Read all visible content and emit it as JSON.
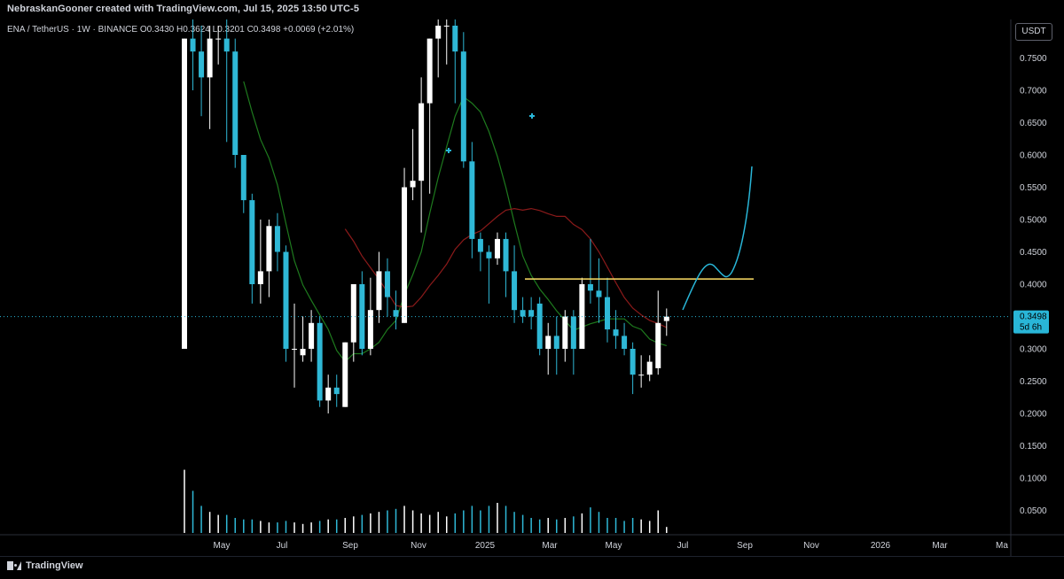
{
  "header": {
    "attribution": "NebraskanGooner created with TradingView.com, Jul 15, 2025 13:50 UTC-5",
    "symbol": "ENA / TetherUS · 1W · BINANCE",
    "o_label": "O",
    "o_value": "0.3430",
    "h_label": "H",
    "h_value": "0.3624",
    "l_label": "L",
    "l_value": "0.3201",
    "c_label": "C",
    "c_value": "0.3498",
    "change": "+0.0069 (+2.01%)",
    "currency": "USDT"
  },
  "footer": {
    "logo_text": "TradingView"
  },
  "colors": {
    "up": "#ffffff",
    "down": "#2fb8d6",
    "ma_fast": "#1e7a1e",
    "ma_slow": "#8b1a1a",
    "projection": "#29b6d8",
    "resistance": "#ffe066",
    "price_tag": "#29b6d8"
  },
  "chart_data": {
    "type": "candlestick",
    "title": "",
    "price_axis": {
      "ticks": [
        "0.0500",
        "0.1000",
        "0.1500",
        "0.2000",
        "0.2500",
        "0.3000",
        "0.3500",
        "0.4000",
        "0.4500",
        "0.5000",
        "0.5500",
        "0.6000",
        "0.6500",
        "0.7000",
        "0.7500"
      ],
      "range": [
        0.0,
        0.78
      ]
    },
    "time_axis": {
      "ticks": [
        "May",
        "Jul",
        "Sep",
        "Nov",
        "2025",
        "Mar",
        "May",
        "Jul",
        "Sep",
        "Nov",
        "2026",
        "Mar",
        "Ma"
      ]
    },
    "last_price": {
      "value": "0.3498",
      "countdown": "5d 6h"
    },
    "resistance_level": 0.408,
    "candles": [
      {
        "o": 0.3,
        "h": 0.78,
        "l": 0.3,
        "c": 0.78
      },
      {
        "o": 0.78,
        "h": 0.82,
        "l": 0.7,
        "c": 0.76
      },
      {
        "o": 0.76,
        "h": 0.8,
        "l": 0.66,
        "c": 0.72
      },
      {
        "o": 0.72,
        "h": 0.8,
        "l": 0.64,
        "c": 0.78
      },
      {
        "o": 0.78,
        "h": 0.8,
        "l": 0.74,
        "c": 0.78
      },
      {
        "o": 0.78,
        "h": 0.81,
        "l": 0.62,
        "c": 0.76
      },
      {
        "o": 0.76,
        "h": 0.78,
        "l": 0.58,
        "c": 0.6
      },
      {
        "o": 0.6,
        "h": 0.6,
        "l": 0.51,
        "c": 0.53
      },
      {
        "o": 0.53,
        "h": 0.54,
        "l": 0.37,
        "c": 0.4
      },
      {
        "o": 0.4,
        "h": 0.5,
        "l": 0.37,
        "c": 0.42
      },
      {
        "o": 0.42,
        "h": 0.5,
        "l": 0.38,
        "c": 0.49
      },
      {
        "o": 0.49,
        "h": 0.51,
        "l": 0.42,
        "c": 0.45
      },
      {
        "o": 0.45,
        "h": 0.46,
        "l": 0.28,
        "c": 0.3
      },
      {
        "o": 0.3,
        "h": 0.37,
        "l": 0.24,
        "c": 0.3
      },
      {
        "o": 0.29,
        "h": 0.35,
        "l": 0.28,
        "c": 0.3
      },
      {
        "o": 0.3,
        "h": 0.36,
        "l": 0.28,
        "c": 0.34
      },
      {
        "o": 0.34,
        "h": 0.35,
        "l": 0.21,
        "c": 0.22
      },
      {
        "o": 0.22,
        "h": 0.26,
        "l": 0.2,
        "c": 0.24
      },
      {
        "o": 0.24,
        "h": 0.26,
        "l": 0.21,
        "c": 0.23
      },
      {
        "o": 0.21,
        "h": 0.31,
        "l": 0.21,
        "c": 0.31
      },
      {
        "o": 0.31,
        "h": 0.4,
        "l": 0.28,
        "c": 0.4
      },
      {
        "o": 0.4,
        "h": 0.42,
        "l": 0.29,
        "c": 0.3
      },
      {
        "o": 0.3,
        "h": 0.41,
        "l": 0.29,
        "c": 0.36
      },
      {
        "o": 0.36,
        "h": 0.45,
        "l": 0.34,
        "c": 0.42
      },
      {
        "o": 0.42,
        "h": 0.44,
        "l": 0.35,
        "c": 0.38
      },
      {
        "o": 0.36,
        "h": 0.39,
        "l": 0.33,
        "c": 0.35
      },
      {
        "o": 0.34,
        "h": 0.58,
        "l": 0.34,
        "c": 0.55
      },
      {
        "o": 0.55,
        "h": 0.64,
        "l": 0.53,
        "c": 0.56
      },
      {
        "o": 0.56,
        "h": 0.72,
        "l": 0.48,
        "c": 0.68
      },
      {
        "o": 0.68,
        "h": 0.78,
        "l": 0.54,
        "c": 0.78
      },
      {
        "o": 0.78,
        "h": 0.82,
        "l": 0.72,
        "c": 0.8
      },
      {
        "o": 0.8,
        "h": 0.82,
        "l": 0.74,
        "c": 0.8
      },
      {
        "o": 0.8,
        "h": 0.82,
        "l": 0.68,
        "c": 0.76
      },
      {
        "o": 0.76,
        "h": 0.79,
        "l": 0.58,
        "c": 0.59
      },
      {
        "o": 0.59,
        "h": 0.62,
        "l": 0.44,
        "c": 0.47
      },
      {
        "o": 0.47,
        "h": 0.48,
        "l": 0.42,
        "c": 0.45
      },
      {
        "o": 0.45,
        "h": 0.46,
        "l": 0.37,
        "c": 0.44
      },
      {
        "o": 0.44,
        "h": 0.48,
        "l": 0.43,
        "c": 0.47
      },
      {
        "o": 0.47,
        "h": 0.48,
        "l": 0.38,
        "c": 0.42
      },
      {
        "o": 0.42,
        "h": 0.46,
        "l": 0.34,
        "c": 0.36
      },
      {
        "o": 0.36,
        "h": 0.38,
        "l": 0.34,
        "c": 0.35
      },
      {
        "o": 0.36,
        "h": 0.38,
        "l": 0.33,
        "c": 0.35
      },
      {
        "o": 0.37,
        "h": 0.38,
        "l": 0.29,
        "c": 0.3
      },
      {
        "o": 0.3,
        "h": 0.34,
        "l": 0.26,
        "c": 0.32
      },
      {
        "o": 0.32,
        "h": 0.35,
        "l": 0.26,
        "c": 0.3
      },
      {
        "o": 0.3,
        "h": 0.36,
        "l": 0.28,
        "c": 0.35
      },
      {
        "o": 0.35,
        "h": 0.36,
        "l": 0.26,
        "c": 0.3
      },
      {
        "o": 0.3,
        "h": 0.41,
        "l": 0.3,
        "c": 0.4
      },
      {
        "o": 0.4,
        "h": 0.47,
        "l": 0.37,
        "c": 0.39
      },
      {
        "o": 0.39,
        "h": 0.44,
        "l": 0.34,
        "c": 0.38
      },
      {
        "o": 0.38,
        "h": 0.41,
        "l": 0.31,
        "c": 0.33
      },
      {
        "o": 0.33,
        "h": 0.36,
        "l": 0.3,
        "c": 0.32
      },
      {
        "o": 0.32,
        "h": 0.34,
        "l": 0.29,
        "c": 0.3
      },
      {
        "o": 0.3,
        "h": 0.31,
        "l": 0.23,
        "c": 0.26
      },
      {
        "o": 0.26,
        "h": 0.29,
        "l": 0.24,
        "c": 0.26
      },
      {
        "o": 0.26,
        "h": 0.29,
        "l": 0.25,
        "c": 0.28
      },
      {
        "o": 0.27,
        "h": 0.39,
        "l": 0.26,
        "c": 0.34
      },
      {
        "o": 0.343,
        "h": 0.3624,
        "l": 0.3201,
        "c": 0.3498
      }
    ],
    "volume": [
      0.42,
      0.28,
      0.18,
      0.14,
      0.12,
      0.12,
      0.1,
      0.09,
      0.09,
      0.08,
      0.07,
      0.07,
      0.08,
      0.07,
      0.06,
      0.07,
      0.08,
      0.09,
      0.09,
      0.1,
      0.11,
      0.12,
      0.13,
      0.14,
      0.15,
      0.16,
      0.18,
      0.15,
      0.13,
      0.12,
      0.14,
      0.11,
      0.13,
      0.15,
      0.18,
      0.15,
      0.18,
      0.2,
      0.18,
      0.14,
      0.12,
      0.1,
      0.09,
      0.1,
      0.09,
      0.1,
      0.11,
      0.13,
      0.17,
      0.14,
      0.1,
      0.1,
      0.08,
      0.1,
      0.09,
      0.08,
      0.15,
      0.04
    ]
  }
}
